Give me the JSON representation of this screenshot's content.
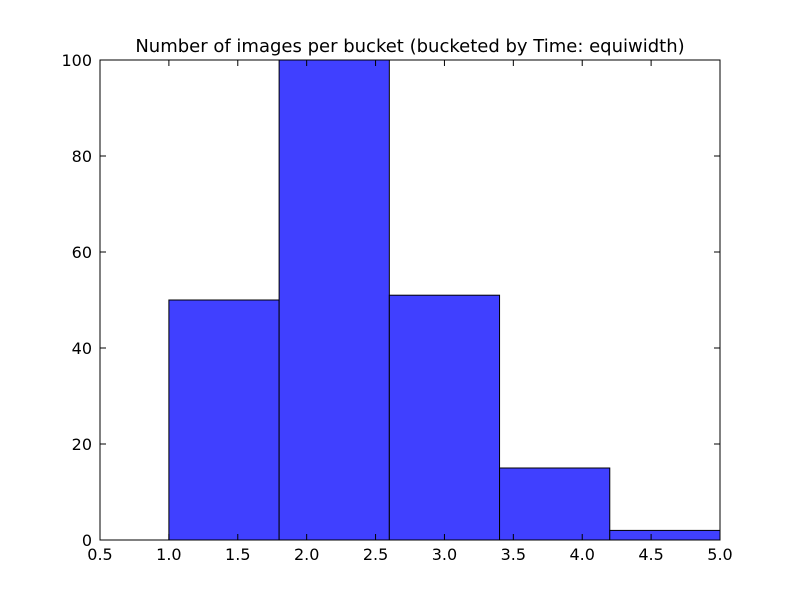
{
  "chart_data": {
    "type": "bar",
    "title": "Number of images per bucket (bucketed by Time: equiwidth)",
    "xlabel": "",
    "ylabel": "",
    "xlim": [
      0.5,
      5.0
    ],
    "ylim": [
      0,
      100
    ],
    "x_ticks": [
      "0.5",
      "1.0",
      "1.5",
      "2.0",
      "2.5",
      "3.0",
      "3.5",
      "4.0",
      "4.5",
      "5.0"
    ],
    "y_ticks": [
      "0",
      "20",
      "40",
      "60",
      "80",
      "100"
    ],
    "bins": [
      {
        "start": 1.0,
        "end": 1.8,
        "value": 50
      },
      {
        "start": 1.8,
        "end": 2.6,
        "value": 100
      },
      {
        "start": 2.6,
        "end": 3.4,
        "value": 51
      },
      {
        "start": 3.4,
        "end": 4.2,
        "value": 15
      },
      {
        "start": 4.2,
        "end": 5.0,
        "value": 2
      }
    ],
    "bar_color": "#4040ff",
    "grid": false,
    "legend": "none"
  }
}
